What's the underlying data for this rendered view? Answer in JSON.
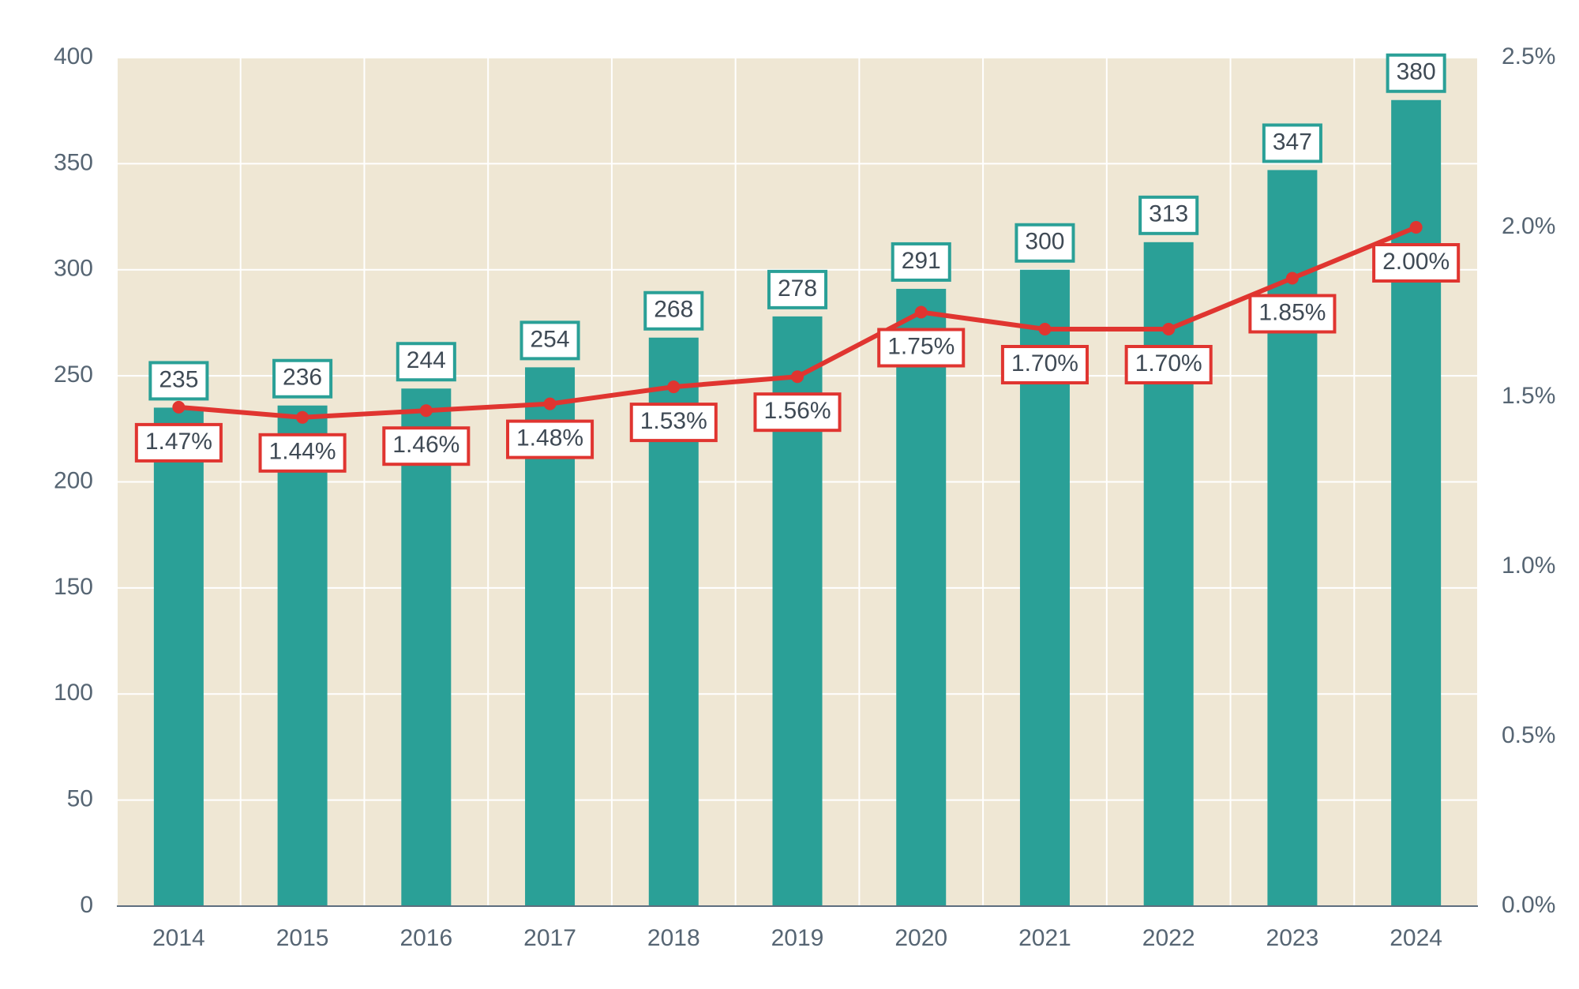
{
  "chart_data": {
    "type": "bar",
    "categories": [
      "2014",
      "2015",
      "2016",
      "2017",
      "2018",
      "2019",
      "2020",
      "2021",
      "2022",
      "2023",
      "2024"
    ],
    "series": [
      {
        "type": "bar",
        "axis": "left",
        "values": [
          235,
          236,
          244,
          254,
          268,
          278,
          291,
          300,
          313,
          347,
          380
        ],
        "labels": [
          "235",
          "236",
          "244",
          "254",
          "268",
          "278",
          "291",
          "300",
          "313",
          "347",
          "380"
        ]
      },
      {
        "type": "line",
        "axis": "right",
        "values": [
          1.47,
          1.44,
          1.46,
          1.48,
          1.53,
          1.56,
          1.75,
          1.7,
          1.7,
          1.85,
          2.0
        ],
        "labels": [
          "1.47%",
          "1.44%",
          "1.46%",
          "1.48%",
          "1.53%",
          "1.56%",
          "1.75%",
          "1.70%",
          "1.70%",
          "1.85%",
          "2.00%"
        ]
      }
    ],
    "ylim": [
      0,
      400
    ],
    "y2lim": [
      0,
      2.5
    ],
    "yticks": [
      "0",
      "50",
      "100",
      "150",
      "200",
      "250",
      "300",
      "350",
      "400"
    ],
    "y2ticks": [
      "0.0%",
      "0.5%",
      "1.0%",
      "1.5%",
      "2.0%",
      "2.5%"
    ],
    "grid": true,
    "title": "",
    "xlabel": "",
    "ylabel": "",
    "y2label": ""
  },
  "colors": {
    "plot_background": "#efe7d4",
    "grid": "#ffffff",
    "bar": "#2aa097",
    "line": "#e03530",
    "axis_text": "#566573",
    "label_text": "#3f4a55"
  }
}
